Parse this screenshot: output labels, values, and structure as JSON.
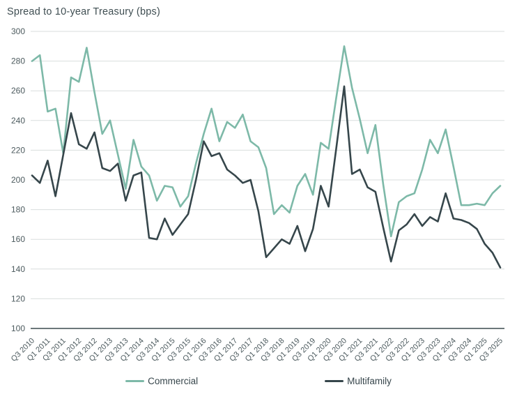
{
  "title": "Spread to 10-year Treasury (bps)",
  "legend": {
    "commercial": "Commercial",
    "multifamily": "Multifamily"
  },
  "colors": {
    "commercial": "#7db9a8",
    "multifamily": "#36464b",
    "gridline": "#d9dedd",
    "axis_line": "#3b4a4e",
    "tick_label": "#4c5a5e",
    "title_text": "#3f4e52"
  },
  "chart_data": {
    "type": "line",
    "title": "Spread to 10-year Treasury (bps)",
    "xlabel": "",
    "ylabel": "Spread to 10-year Treasury (bps)",
    "ylim": [
      100,
      300
    ],
    "y_ticks": [
      300,
      280,
      260,
      240,
      220,
      200,
      180,
      160,
      140,
      120,
      100
    ],
    "grid": "horizontal",
    "legend_position": "bottom",
    "x": [
      "Q3 2010",
      "Q4 2010",
      "Q1 2011",
      "Q2 2011",
      "Q3 2011",
      "Q4 2011",
      "Q1 2012",
      "Q2 2012",
      "Q3 2012",
      "Q4 2012",
      "Q1 2013",
      "Q2 2013",
      "Q3 2013",
      "Q4 2013",
      "Q1 2014",
      "Q2 2014",
      "Q3 2014",
      "Q4 2014",
      "Q1 2015",
      "Q2 2015",
      "Q3 2015",
      "Q4 2015",
      "Q1 2016",
      "Q2 2016",
      "Q3 2016",
      "Q4 2016",
      "Q1 2017",
      "Q2 2017",
      "Q3 2017",
      "Q4 2017",
      "Q1 2018",
      "Q2 2018",
      "Q3 2018",
      "Q4 2018",
      "Q1 2019",
      "Q2 2019",
      "Q3 2019",
      "Q4 2019",
      "Q1 2020",
      "Q2 2020",
      "Q3 2020",
      "Q4 2020",
      "Q1 2021",
      "Q2 2021",
      "Q3 2021",
      "Q4 2021",
      "Q1 2022",
      "Q2 2022",
      "Q3 2022",
      "Q4 2022",
      "Q1 2023",
      "Q2 2023",
      "Q3 2023",
      "Q4 2023",
      "Q1 2024",
      "Q2 2024",
      "Q3 2024",
      "Q4 2024",
      "Q1 2025",
      "Q2 2025",
      "Q3 2025"
    ],
    "x_tick_labels": [
      "Q3 2010",
      "Q1 2011",
      "Q3 2011",
      "Q1 2012",
      "Q3 2012",
      "Q1 2013",
      "Q3 2013",
      "Q1 2014",
      "Q3 2014",
      "Q1 2015",
      "Q3 2015",
      "Q1 2016",
      "Q3 2016",
      "Q1 2017",
      "Q3 2017",
      "Q1 2018",
      "Q3 2018",
      "Q1 2019",
      "Q3 2019",
      "Q1 2020",
      "Q3 2020",
      "Q1 2021",
      "Q3 2021",
      "Q1 2022",
      "Q3 2022",
      "Q1 2023",
      "Q3 2023",
      "Q1 2024",
      "Q3 2024",
      "Q1 2025",
      "Q3 2025"
    ],
    "series": [
      {
        "name": "Commercial",
        "color": "#7db9a8",
        "values": [
          280,
          284,
          246,
          248,
          218,
          269,
          266,
          289,
          259,
          231,
          240,
          217,
          194,
          227,
          209,
          203,
          186,
          196,
          195,
          182,
          189,
          211,
          231,
          248,
          226,
          239,
          235,
          244,
          226,
          222,
          208,
          177,
          183,
          178,
          196,
          204,
          190,
          225,
          221,
          256,
          290,
          262,
          241,
          218,
          237,
          197,
          162,
          185,
          189,
          191,
          207,
          227,
          218,
          234,
          209,
          183,
          183,
          184,
          183,
          191,
          196
        ]
      },
      {
        "name": "Multifamily",
        "color": "#36464b",
        "values": [
          203,
          198,
          213,
          189,
          217,
          245,
          224,
          221,
          232,
          208,
          206,
          211,
          186,
          203,
          205,
          161,
          160,
          174,
          163,
          170,
          177,
          200,
          226,
          216,
          218,
          207,
          203,
          198,
          200,
          179,
          148,
          154,
          160,
          157,
          169,
          152,
          167,
          196,
          182,
          222,
          263,
          204,
          207,
          195,
          192,
          168,
          145,
          166,
          170,
          177,
          169,
          175,
          172,
          191,
          174,
          173,
          171,
          167,
          157,
          151,
          141
        ]
      }
    ]
  }
}
